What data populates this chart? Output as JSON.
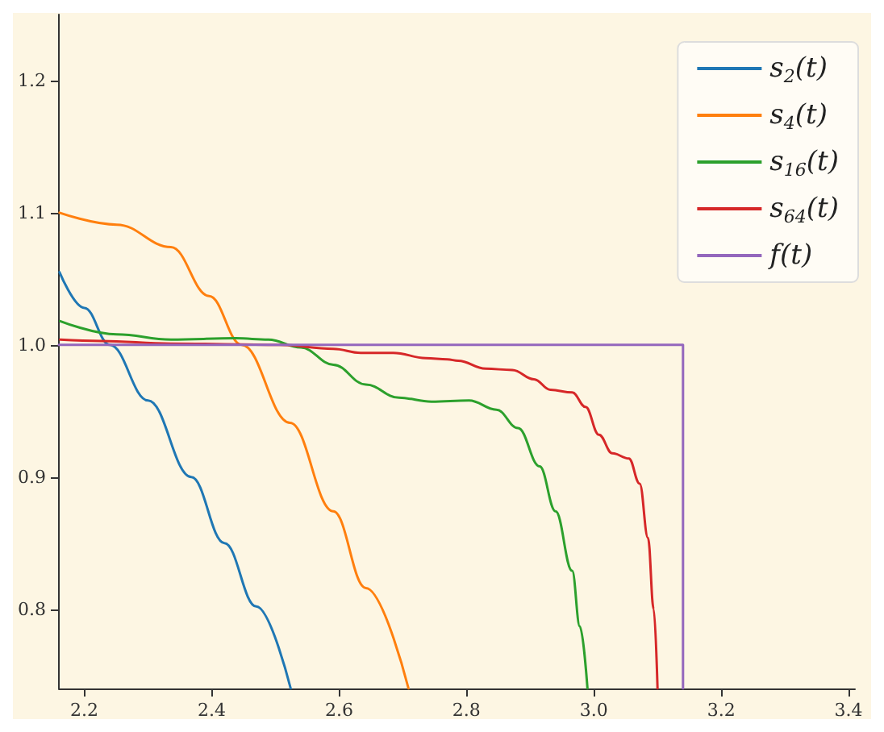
{
  "chart_data": {
    "type": "line",
    "xlim": [
      2.16,
      3.41
    ],
    "ylim": [
      0.74,
      1.25
    ],
    "xticks": [
      2.2,
      2.4,
      2.6,
      2.8,
      {
        "value": 3,
        "label": "3.0"
      },
      3.2,
      3.4
    ],
    "yticks": [
      0.8,
      0.9,
      {
        "value": 1,
        "label": "1.0"
      },
      1.1,
      1.2
    ],
    "grid": false,
    "legend": "top right",
    "marker": "none",
    "line_style": "solid",
    "series": [
      {
        "name": "s$_{2}$(t)",
        "color": "#1f77b4",
        "x": [
          2.161,
          2.2,
          2.24,
          2.3,
          2.368,
          2.42,
          2.47,
          2.524
        ],
        "values": [
          1.055,
          1.028,
          1.0,
          0.958,
          0.9,
          0.85,
          0.802,
          0.74
        ]
      },
      {
        "name": "s$_{4}$(t)",
        "color": "#ff7f0e",
        "x": [
          2.161,
          2.251,
          2.336,
          2.396,
          2.447,
          2.523,
          2.591,
          2.642,
          2.709
        ],
        "values": [
          1.1,
          1.091,
          1.074,
          1.037,
          1.0,
          0.941,
          0.874,
          0.816,
          0.74
        ]
      },
      {
        "name": "s$_{16}$(t)",
        "color": "#2ca02c",
        "x": [
          2.162,
          2.251,
          2.336,
          2.438,
          2.489,
          2.54,
          2.591,
          2.642,
          2.694,
          2.745,
          2.804,
          2.847,
          2.881,
          2.915,
          2.94,
          2.966,
          2.978,
          2.99
        ],
        "values": [
          1.018,
          1.008,
          1.004,
          1.005,
          1.004,
          0.998,
          0.985,
          0.97,
          0.96,
          0.957,
          0.958,
          0.951,
          0.937,
          0.908,
          0.874,
          0.829,
          0.787,
          0.74
        ]
      },
      {
        "name": "s$_{64}$(t)",
        "color": "#d62728",
        "x": [
          2.162,
          2.226,
          2.336,
          2.506,
          2.591,
          2.634,
          2.685,
          2.736,
          2.77,
          2.787,
          2.83,
          2.872,
          2.906,
          2.932,
          2.966,
          2.987,
          3.008,
          3.029,
          3.055,
          3.072,
          3.085,
          3.094,
          3.1
        ],
        "values": [
          1.004,
          1.003,
          1.001,
          1.0,
          0.997,
          0.994,
          0.994,
          0.99,
          0.989,
          0.988,
          0.982,
          0.981,
          0.974,
          0.966,
          0.964,
          0.953,
          0.932,
          0.918,
          0.914,
          0.895,
          0.854,
          0.8,
          0.74
        ]
      },
      {
        "name": "f(t)",
        "color": "#9467bd",
        "x": [
          2.16,
          3.14,
          3.14
        ],
        "values": [
          1.0,
          1.0,
          0.74
        ]
      }
    ]
  }
}
